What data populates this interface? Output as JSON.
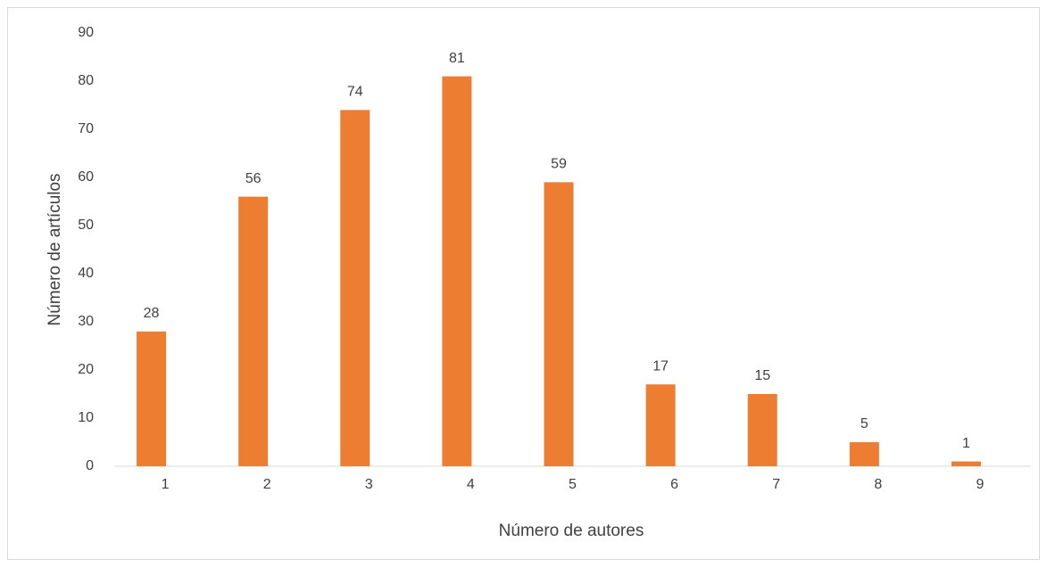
{
  "chart_data": {
    "type": "bar",
    "xlabel": "Número de autores",
    "ylabel": "Número de artículos",
    "categories": [
      "1",
      "2",
      "3",
      "4",
      "5",
      "6",
      "7",
      "8",
      "9"
    ],
    "values": [
      28,
      56,
      74,
      81,
      59,
      17,
      15,
      5,
      1
    ],
    "color": "#ed7d31",
    "ylim": [
      0,
      90
    ],
    "yticks": [
      0,
      10,
      20,
      30,
      40,
      50,
      60,
      70,
      80,
      90
    ],
    "grid": false
  }
}
